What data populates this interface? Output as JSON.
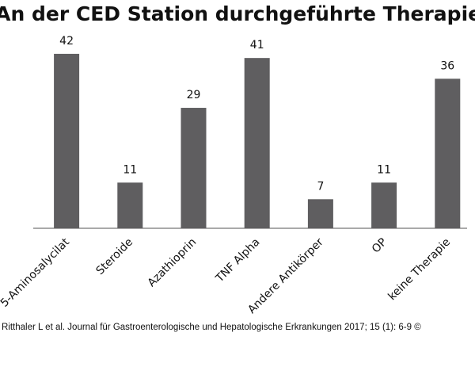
{
  "chart_data": {
    "type": "bar",
    "title": "An der CED Station durchgeführte Therapien",
    "categories": [
      "5-Aminosalycilat",
      "Steroide",
      "Azathioprin",
      "TNF Alpha",
      "Andere Antikörper",
      "OP",
      "keine Therapie"
    ],
    "values": [
      42,
      11,
      29,
      41,
      7,
      11,
      36
    ],
    "color": "#5f5e60"
  },
  "source": "Ritthaler L et al. Journal für Gastroenterologische und Hepatologische Erkrankungen 2017; 15 (1): 6-9 ©"
}
